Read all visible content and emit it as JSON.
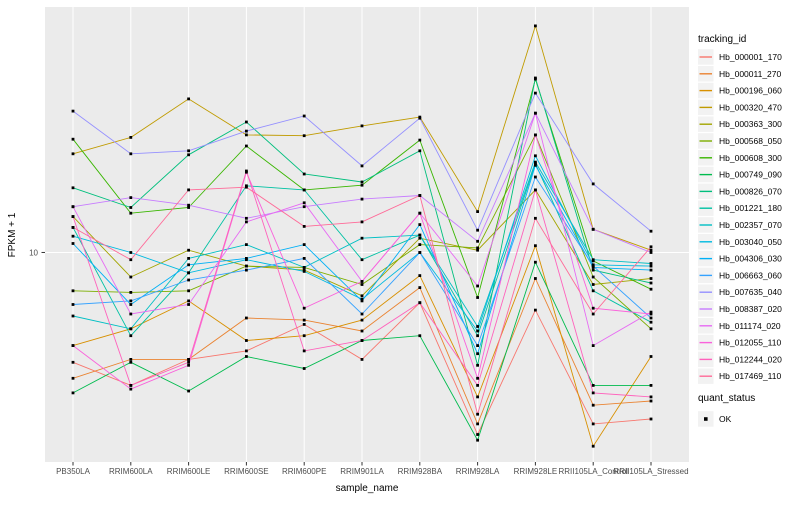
{
  "figure": {
    "y_axis": {
      "title": "FPKM + 1",
      "tick_label": "10"
    },
    "x_axis": {
      "title": "sample_name"
    },
    "legend": {
      "tracking_title": "tracking_id",
      "quant_title": "quant_status",
      "quant_label": "OK"
    }
  },
  "colors": {
    "panel_bg": "#EBEBEB",
    "gridline": "#FFFFFF",
    "legend_key_bg": "#F2F2F2",
    "axis_text": "#4D4D4D",
    "title_text": "#000000",
    "point_marker": "#000000"
  },
  "chart_data": {
    "type": "line",
    "title": "",
    "xlabel": "sample_name",
    "ylabel": "FPKM + 1",
    "y_scale": "log10",
    "y_tick_labels": [
      "10"
    ],
    "ylim": [
      1.66,
      81.3
    ],
    "ylim_log10": [
      0.22,
      1.91
    ],
    "grid": "major-only",
    "legend_position": "right",
    "legend_title": "tracking_id",
    "point_legend": {
      "title": "quant_status",
      "label": "OK",
      "shape": "filled-square",
      "color": "#000000"
    },
    "categories": [
      "PB350LA",
      "RRIM600LA",
      "RRIM600LE",
      "RRIM600SE",
      "RRIM600PE",
      "RRIM901LA",
      "RRIM928BA",
      "RRIM928LA",
      "RRIM928LE",
      "RRII105LA_Control",
      "RRII105LA_Stressed"
    ],
    "series": [
      {
        "name": "Hb_000001_170",
        "color": "#F8766D",
        "values": [
          3.9,
          3.2,
          4.0,
          4.3,
          5.4,
          4.0,
          6.5,
          2.1,
          6.1,
          2.3,
          2.4
        ]
      },
      {
        "name": "Hb_000011_270",
        "color": "#EA8331",
        "values": [
          3.4,
          4.0,
          4.0,
          5.7,
          5.6,
          5.1,
          7.4,
          2.3,
          8.0,
          2.7,
          2.8
        ]
      },
      {
        "name": "Hb_000196_060",
        "color": "#D89000",
        "values": [
          4.5,
          5.2,
          6.6,
          4.7,
          4.9,
          5.6,
          8.2,
          2.9,
          10.6,
          1.9,
          4.1
        ]
      },
      {
        "name": "Hb_000320_470",
        "color": "#C09B00",
        "values": [
          23.3,
          26.8,
          37.3,
          27.4,
          27.2,
          29.6,
          31.9,
          14.2,
          69.7,
          12.2,
          10.2
        ]
      },
      {
        "name": "Hb_000363_300",
        "color": "#A3A500",
        "values": [
          13.6,
          8.1,
          10.2,
          8.9,
          8.6,
          6.9,
          11.3,
          10.2,
          17.1,
          7.6,
          8.0
        ]
      },
      {
        "name": "Hb_000568_050",
        "color": "#7CAE00",
        "values": [
          7.2,
          7.1,
          7.2,
          8.9,
          8.8,
          7.6,
          10.7,
          10.4,
          27.4,
          8.1,
          5.2
        ]
      },
      {
        "name": "Hb_000608_300",
        "color": "#39B600",
        "values": [
          26.4,
          14.0,
          14.7,
          24.9,
          17.1,
          17.8,
          26.2,
          6.8,
          44.2,
          9.3,
          7.3
        ]
      },
      {
        "name": "Hb_000749_090",
        "color": "#00BB4E",
        "values": [
          3.0,
          3.9,
          3.05,
          4.1,
          3.7,
          4.7,
          4.9,
          2.0,
          9.2,
          3.2,
          3.2
        ]
      },
      {
        "name": "Hb_000826_070",
        "color": "#00BF7D",
        "values": [
          17.4,
          14.7,
          23.1,
          30.6,
          19.6,
          18.3,
          23.9,
          3.8,
          44.6,
          8.6,
          7.7
        ]
      },
      {
        "name": "Hb_001221_180",
        "color": "#00C1A3",
        "values": [
          12.4,
          4.9,
          8.4,
          17.7,
          17.1,
          9.4,
          11.6,
          4.9,
          21.4,
          7.2,
          5.5
        ]
      },
      {
        "name": "Hb_002357_070",
        "color": "#00BFC4",
        "values": [
          5.8,
          5.2,
          9.5,
          10.7,
          8.8,
          11.3,
          11.6,
          5.3,
          21.7,
          9.4,
          9.1
        ]
      },
      {
        "name": "Hb_003040_050",
        "color": "#00BAE0",
        "values": [
          11.5,
          10.0,
          8.4,
          9.4,
          8.5,
          6.7,
          10.0,
          5.1,
          22.9,
          9.0,
          8.9
        ]
      },
      {
        "name": "Hb_004306_030",
        "color": "#00B0F6",
        "values": [
          10.8,
          6.4,
          9.0,
          9.5,
          10.7,
          6.6,
          12.7,
          4.2,
          21.1,
          8.8,
          8.6
        ]
      },
      {
        "name": "Hb_006663_060",
        "color": "#35A2FF",
        "values": [
          6.4,
          6.6,
          7.9,
          8.6,
          9.5,
          5.9,
          10.0,
          4.5,
          19.1,
          8.9,
          5.7
        ]
      },
      {
        "name": "Hb_007635_040",
        "color": "#9590FF",
        "values": [
          33.6,
          23.3,
          23.9,
          28.3,
          32.2,
          21.0,
          31.6,
          12.1,
          39.2,
          18.0,
          12.0
        ]
      },
      {
        "name": "Hb_008387_020",
        "color": "#C77CFF",
        "values": [
          14.8,
          16.0,
          15.0,
          13.4,
          14.8,
          15.8,
          16.3,
          11.0,
          33.0,
          12.2,
          10.0
        ]
      },
      {
        "name": "Hb_011174_020",
        "color": "#E76BF3",
        "values": [
          14.8,
          5.9,
          6.4,
          13.0,
          15.3,
          7.8,
          14.0,
          7.5,
          33.0,
          4.5,
          6.0
        ]
      },
      {
        "name": "Hb_012055_110",
        "color": "#FA62DB",
        "values": [
          4.5,
          3.1,
          3.8,
          19.9,
          6.2,
          7.8,
          14.0,
          3.4,
          27.4,
          6.2,
          5.9
        ]
      },
      {
        "name": "Hb_012244_020",
        "color": "#FF62BC",
        "values": [
          13.6,
          3.2,
          3.9,
          20.1,
          4.3,
          4.7,
          6.5,
          3.2,
          17.1,
          3.0,
          2.9
        ]
      },
      {
        "name": "Hb_017469_110",
        "color": "#FF6A98",
        "values": [
          12.4,
          9.4,
          17.1,
          17.5,
          12.5,
          13.0,
          16.3,
          2.5,
          13.4,
          5.9,
          10.5
        ]
      }
    ]
  }
}
